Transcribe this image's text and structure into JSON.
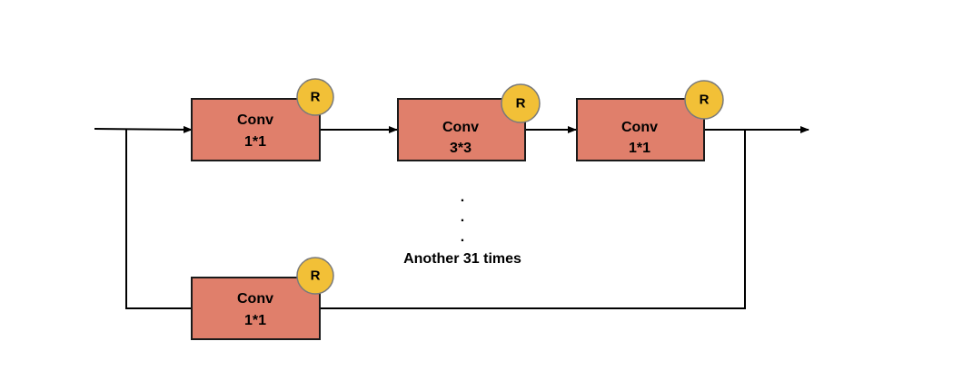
{
  "blocks": [
    {
      "title": "Conv",
      "kernel": "1*1",
      "badge": "R"
    },
    {
      "title": "Conv",
      "kernel": "3*3",
      "badge": "R"
    },
    {
      "title": "Conv",
      "kernel": "1*1",
      "badge": "R"
    },
    {
      "title": "Conv",
      "kernel": "1*1",
      "badge": "R"
    }
  ],
  "ellipsis": [
    ".",
    ".",
    "."
  ],
  "repeat_note": "Another 31 times",
  "colors": {
    "block_fill": "#e07f6b",
    "badge_fill": "#f2c037",
    "line": "#000000"
  }
}
